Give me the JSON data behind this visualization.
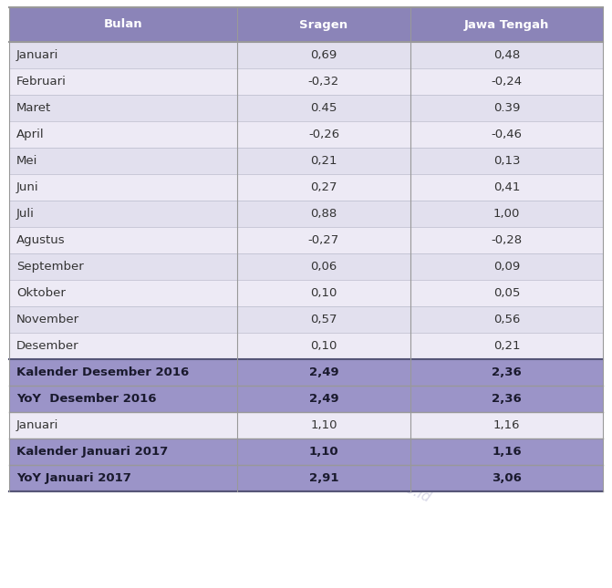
{
  "header": [
    "Bulan",
    "Sragen",
    "Jawa Tengah"
  ],
  "rows": [
    {
      "bulan": "Januari",
      "sragen": "0,69",
      "jateng": "0,48",
      "type": "normal"
    },
    {
      "bulan": "Februari",
      "sragen": "-0,32",
      "jateng": "-0,24",
      "type": "normal"
    },
    {
      "bulan": "Maret",
      "sragen": "0.45",
      "jateng": "0.39",
      "type": "normal"
    },
    {
      "bulan": "April",
      "sragen": "-0,26",
      "jateng": "-0,46",
      "type": "normal"
    },
    {
      "bulan": "Mei",
      "sragen": "0,21",
      "jateng": "0,13",
      "type": "normal"
    },
    {
      "bulan": "Juni",
      "sragen": "0,27",
      "jateng": "0,41",
      "type": "normal"
    },
    {
      "bulan": "Juli",
      "sragen": "0,88",
      "jateng": "1,00",
      "type": "normal"
    },
    {
      "bulan": "Agustus",
      "sragen": "-0,27",
      "jateng": "-0,28",
      "type": "normal"
    },
    {
      "bulan": "September",
      "sragen": "0,06",
      "jateng": "0,09",
      "type": "normal"
    },
    {
      "bulan": "Oktober",
      "sragen": "0,10",
      "jateng": "0,05",
      "type": "normal"
    },
    {
      "bulan": "November",
      "sragen": "0,57",
      "jateng": "0,56",
      "type": "normal"
    },
    {
      "bulan": "Desember",
      "sragen": "0,10",
      "jateng": "0,21",
      "type": "normal"
    },
    {
      "bulan": "Kalender Desember 2016",
      "sragen": "2,49",
      "jateng": "2,36",
      "type": "summary"
    },
    {
      "bulan": "YoY  Desember 2016",
      "sragen": "2,49",
      "jateng": "2,36",
      "type": "summary"
    },
    {
      "bulan": "Januari",
      "sragen": "1,10",
      "jateng": "1,16",
      "type": "normal_light"
    },
    {
      "bulan": "Kalender Januari 2017",
      "sragen": "1,10",
      "jateng": "1,16",
      "type": "summary"
    },
    {
      "bulan": "YoY Januari 2017",
      "sragen": "2,91",
      "jateng": "3,06",
      "type": "summary"
    }
  ],
  "header_bg": "#8B84B8",
  "header_text": "#FFFFFF",
  "normal_bg_odd": "#E2E0EE",
  "normal_bg_even": "#EDEAF5",
  "normal_light_bg": "#EDEAF5",
  "summary_bg": "#9B94C8",
  "summary_text": "#1a1a2e",
  "normal_text": "#333333",
  "border_color": "#999999",
  "thick_border_color": "#555577",
  "watermark": "http://sragenkab.bps.go.id",
  "fig_width": 6.71,
  "fig_height": 6.45
}
